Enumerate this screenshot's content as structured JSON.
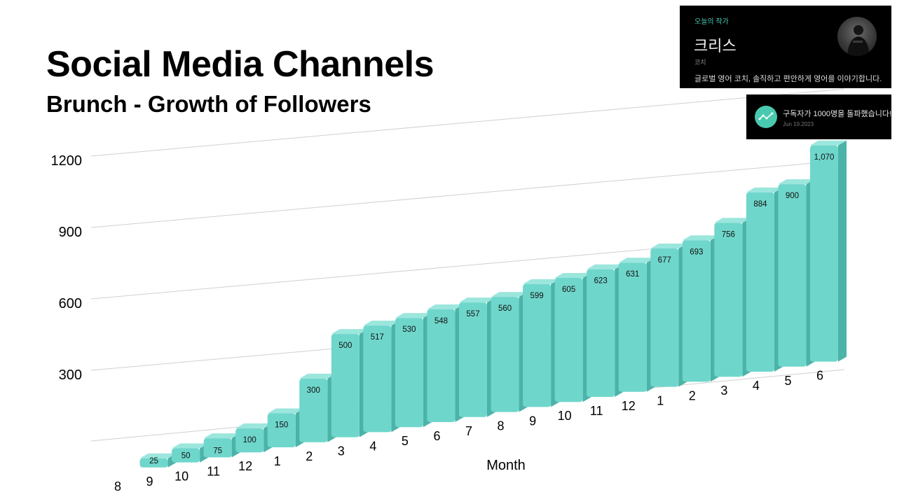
{
  "header": {
    "title": "Social Media Channels",
    "subtitle": "Brunch - Growth of Followers"
  },
  "author_card": {
    "eyebrow": "오늘의 작가",
    "name": "크리스",
    "role": "코치",
    "description": "글로벌 영어 코치, 솔직하고 편안하게 영어를 이야기합니다."
  },
  "milestone": {
    "message": "구독자가 1000명을 돌파했습니다!",
    "date": "Jun 19.2023"
  },
  "colors": {
    "bar_front": "#6fd6cb",
    "bar_top": "#9be6dd",
    "bar_side": "#4bb3a8",
    "accent": "#48c9b0"
  },
  "chart_data": {
    "type": "bar",
    "title": "Brunch - Growth of Followers",
    "xlabel": "Month",
    "ylabel": "",
    "ylim": [
      0,
      1200
    ],
    "yticks": [
      300,
      600,
      900,
      1200
    ],
    "grid": true,
    "categories": [
      "8",
      "9",
      "10",
      "11",
      "12",
      "1",
      "2",
      "3",
      "4",
      "5",
      "6",
      "7",
      "8",
      "9",
      "10",
      "11",
      "12",
      "1",
      "2",
      "3",
      "4",
      "5",
      "6"
    ],
    "values": [
      null,
      25,
      50,
      75,
      100,
      150,
      300,
      500,
      517,
      530,
      548,
      557,
      560,
      599,
      605,
      623,
      631,
      677,
      693,
      756,
      884,
      900,
      1070
    ],
    "value_labels": [
      "",
      "25",
      "50",
      "75",
      "100",
      "150",
      "300",
      "500",
      "517",
      "530",
      "548",
      "557",
      "560",
      "599",
      "605",
      "623",
      "631",
      "677",
      "693",
      "756",
      "884",
      "900",
      "1,070"
    ]
  }
}
